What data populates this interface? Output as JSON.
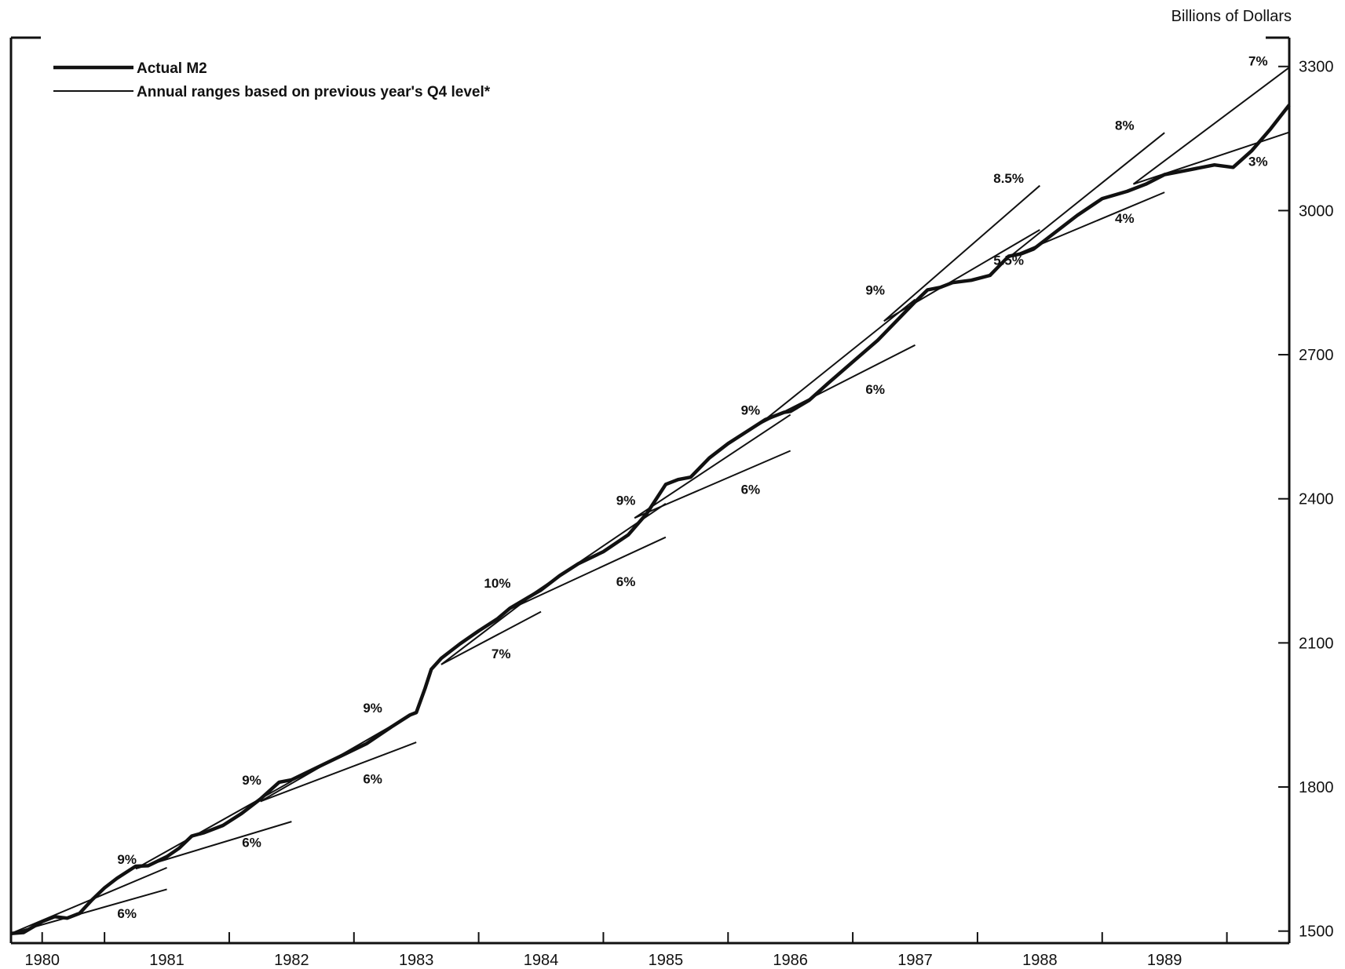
{
  "chart_data": {
    "type": "line",
    "y_unit_label": "Billions of Dollars",
    "x_ticks": [
      "1980",
      "1981",
      "1982",
      "1983",
      "1984",
      "1985",
      "1986",
      "1987",
      "1988",
      "1989"
    ],
    "y_ticks": [
      1500,
      1800,
      2100,
      2400,
      2700,
      3000,
      3300
    ],
    "xlim": [
      1979.75,
      1990.0
    ],
    "ylim": [
      1475,
      3360
    ],
    "grid": false,
    "legend": {
      "placement": "top-left",
      "entries": [
        {
          "label": "Actual M2",
          "style": "thick"
        },
        {
          "label": "Annual ranges based on previous year's Q4 level*",
          "style": "thin"
        }
      ]
    },
    "series": [
      {
        "name": "Actual M2",
        "points": [
          [
            1979.75,
            1495
          ],
          [
            1979.85,
            1497
          ],
          [
            1980.0,
            1520
          ],
          [
            1980.1,
            1530
          ],
          [
            1980.2,
            1527
          ],
          [
            1980.3,
            1537
          ],
          [
            1980.4,
            1565
          ],
          [
            1980.5,
            1590
          ],
          [
            1980.6,
            1610
          ],
          [
            1980.75,
            1635
          ],
          [
            1980.85,
            1636
          ],
          [
            1981.0,
            1655
          ],
          [
            1981.1,
            1673
          ],
          [
            1981.2,
            1698
          ],
          [
            1981.3,
            1705
          ],
          [
            1981.45,
            1720
          ],
          [
            1981.6,
            1745
          ],
          [
            1981.75,
            1775
          ],
          [
            1981.9,
            1810
          ],
          [
            1982.0,
            1815
          ],
          [
            1982.2,
            1840
          ],
          [
            1982.4,
            1865
          ],
          [
            1982.6,
            1890
          ],
          [
            1982.8,
            1925
          ],
          [
            1982.95,
            1950
          ],
          [
            1983.0,
            1955
          ],
          [
            1983.07,
            2005
          ],
          [
            1983.12,
            2045
          ],
          [
            1983.2,
            2068
          ],
          [
            1983.35,
            2098
          ],
          [
            1983.5,
            2125
          ],
          [
            1983.65,
            2150
          ],
          [
            1983.75,
            2172
          ],
          [
            1983.9,
            2195
          ],
          [
            1984.0,
            2210
          ],
          [
            1984.15,
            2240
          ],
          [
            1984.3,
            2265
          ],
          [
            1984.5,
            2290
          ],
          [
            1984.7,
            2325
          ],
          [
            1984.85,
            2370
          ],
          [
            1985.0,
            2430
          ],
          [
            1985.1,
            2440
          ],
          [
            1985.2,
            2445
          ],
          [
            1985.35,
            2485
          ],
          [
            1985.5,
            2515
          ],
          [
            1985.65,
            2540
          ],
          [
            1985.8,
            2565
          ],
          [
            1985.95,
            2580
          ],
          [
            1986.0,
            2582
          ],
          [
            1986.15,
            2605
          ],
          [
            1986.3,
            2640
          ],
          [
            1986.5,
            2685
          ],
          [
            1986.7,
            2730
          ],
          [
            1986.85,
            2770
          ],
          [
            1987.0,
            2810
          ],
          [
            1987.1,
            2835
          ],
          [
            1987.2,
            2840
          ],
          [
            1987.3,
            2850
          ],
          [
            1987.45,
            2855
          ],
          [
            1987.6,
            2865
          ],
          [
            1987.75,
            2905
          ],
          [
            1987.85,
            2910
          ],
          [
            1987.95,
            2920
          ],
          [
            1988.1,
            2950
          ],
          [
            1988.3,
            2990
          ],
          [
            1988.5,
            3025
          ],
          [
            1988.7,
            3040
          ],
          [
            1988.85,
            3055
          ],
          [
            1989.0,
            3075
          ],
          [
            1989.2,
            3085
          ],
          [
            1989.4,
            3095
          ],
          [
            1989.55,
            3090
          ],
          [
            1989.7,
            3125
          ],
          [
            1989.85,
            3170
          ],
          [
            1990.0,
            3220
          ]
        ]
      }
    ],
    "ranges": [
      {
        "start": [
          1979.75,
          1495
        ],
        "end": [
          1981.0,
          1632
        ],
        "label": "9%",
        "label_at": [
          1980.68,
          1650
        ],
        "label_pos": "above"
      },
      {
        "start": [
          1979.75,
          1495
        ],
        "end": [
          1981.0,
          1587
        ],
        "label": "6%",
        "label_at": [
          1980.68,
          1537
        ],
        "label_pos": "below"
      },
      {
        "start": [
          1980.75,
          1630
        ],
        "end": [
          1982.0,
          1812
        ],
        "label": "9%",
        "label_at": [
          1981.68,
          1815
        ],
        "label_pos": "above"
      },
      {
        "start": [
          1980.75,
          1630
        ],
        "end": [
          1982.0,
          1728
        ],
        "label": "6%",
        "label_at": [
          1981.68,
          1685
        ],
        "label_pos": "below"
      },
      {
        "start": [
          1981.75,
          1770
        ],
        "end": [
          1983.0,
          1957
        ],
        "label": "9%",
        "label_at": [
          1982.65,
          1965
        ],
        "label_pos": "above"
      },
      {
        "start": [
          1981.75,
          1770
        ],
        "end": [
          1983.0,
          1893
        ],
        "label": "6%",
        "label_at": [
          1982.65,
          1817
        ],
        "label_pos": "below"
      },
      {
        "start": [
          1983.2,
          2055
        ],
        "end": [
          1984.0,
          2213
        ],
        "label": "10%",
        "label_at": [
          1983.65,
          2225
        ],
        "label_pos": "above"
      },
      {
        "start": [
          1983.2,
          2055
        ],
        "end": [
          1984.0,
          2165
        ],
        "label": "7%",
        "label_at": [
          1983.68,
          2078
        ],
        "label_pos": "below"
      },
      {
        "start": [
          1983.75,
          2170
        ],
        "end": [
          1985.0,
          2390
        ],
        "label": "9%",
        "label_at": [
          1984.68,
          2397
        ],
        "label_pos": "above"
      },
      {
        "start": [
          1983.75,
          2170
        ],
        "end": [
          1985.0,
          2320
        ],
        "label": "6%",
        "label_at": [
          1984.68,
          2228
        ],
        "label_pos": "below"
      },
      {
        "start": [
          1984.75,
          2360
        ],
        "end": [
          1986.0,
          2575
        ],
        "label": "9%",
        "label_at": [
          1985.68,
          2585
        ],
        "label_pos": "above"
      },
      {
        "start": [
          1984.75,
          2360
        ],
        "end": [
          1986.0,
          2500
        ],
        "label": "6%",
        "label_at": [
          1985.68,
          2420
        ],
        "label_pos": "below"
      },
      {
        "start": [
          1985.75,
          2555
        ],
        "end": [
          1987.0,
          2815
        ],
        "label": "9%",
        "label_at": [
          1986.68,
          2835
        ],
        "label_pos": "above"
      },
      {
        "start": [
          1985.75,
          2555
        ],
        "end": [
          1987.0,
          2720
        ],
        "label": "6%",
        "label_at": [
          1986.68,
          2628
        ],
        "label_pos": "below"
      },
      {
        "start": [
          1986.75,
          2770
        ],
        "end": [
          1988.0,
          3052
        ],
        "label": "8.5%",
        "label_at": [
          1987.75,
          3068
        ],
        "label_pos": "above"
      },
      {
        "start": [
          1986.75,
          2770
        ],
        "end": [
          1988.0,
          2960
        ],
        "label": "5.5%",
        "label_at": [
          1987.75,
          2897
        ],
        "label_pos": "below"
      },
      {
        "start": [
          1987.75,
          2902
        ],
        "end": [
          1989.0,
          3162
        ],
        "label": "8%",
        "label_at": [
          1988.68,
          3178
        ],
        "label_pos": "above"
      },
      {
        "start": [
          1987.75,
          2902
        ],
        "end": [
          1989.0,
          3038
        ],
        "label": "4%",
        "label_at": [
          1988.68,
          2984
        ],
        "label_pos": "below"
      },
      {
        "start": [
          1988.75,
          3055
        ],
        "end": [
          1990.0,
          3298
        ],
        "label": "7%",
        "label_at": [
          1989.75,
          3312
        ],
        "label_pos": "above"
      },
      {
        "start": [
          1988.75,
          3055
        ],
        "end": [
          1990.0,
          3163
        ],
        "label": "3%",
        "label_at": [
          1989.75,
          3103
        ],
        "label_pos": "below"
      }
    ]
  }
}
